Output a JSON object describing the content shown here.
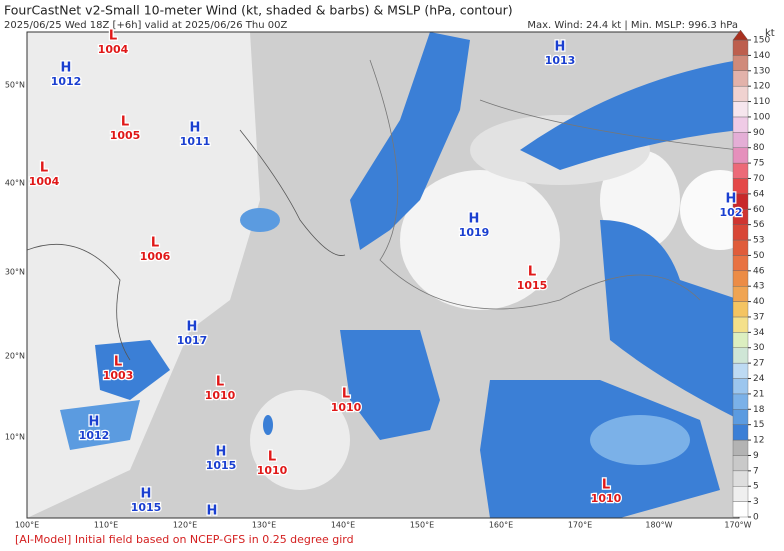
{
  "header": {
    "title": "FourCastNet v2-Small 10-meter Wind (kt, shaded & barbs) & MSLP (hPa, contour)",
    "subtitle": "2025/06/25 Wed 18Z [+6h] valid at 2025/06/26 Thu 00Z",
    "stats": "Max. Wind: 24.4 kt | Min. MSLP: 996.3 hPa"
  },
  "colorbar": {
    "unit": "kt",
    "levels": [
      0,
      3,
      5,
      7,
      9,
      12,
      15,
      18,
      21,
      24,
      27,
      30,
      34,
      37,
      40,
      43,
      46,
      50,
      53,
      56,
      60,
      64,
      70,
      75,
      80,
      90,
      100,
      110,
      120,
      130,
      140,
      150
    ],
    "colors": [
      "#ffffff",
      "#efefef",
      "#dedede",
      "#c9c9c9",
      "#b3b3b3",
      "#3b7fd6",
      "#5b9be0",
      "#7bb1e8",
      "#9cc6ee",
      "#bddaf3",
      "#cfe6d6",
      "#dcefc0",
      "#f4e08a",
      "#f4c462",
      "#f0a452",
      "#ec8c46",
      "#e87242",
      "#e05c3a",
      "#d84636",
      "#cf3430",
      "#c8282a",
      "#e44848",
      "#ec6a78",
      "#e590bc",
      "#e4aed6",
      "#efcbe6",
      "#f6e6ee",
      "#f0d2d0",
      "#e2b2aa",
      "#d08a7a",
      "#bd5f4e"
    ],
    "top_color": "#a8301f"
  },
  "centers": [
    {
      "symbol": "L",
      "pressure": 1004
    },
    {
      "symbol": "H",
      "pressure": 1012
    },
    {
      "symbol": "H",
      "pressure": 1011
    },
    {
      "symbol": "L",
      "pressure": 1005
    },
    {
      "symbol": "L",
      "pressure": 1004
    },
    {
      "symbol": "H",
      "pressure": 1013
    },
    {
      "symbol": "H",
      "pressure": 1019
    },
    {
      "symbol": "H",
      "pressure": 102
    },
    {
      "symbol": "L",
      "pressure": 1006
    },
    {
      "symbol": "L",
      "pressure": 1015
    },
    {
      "symbol": "H",
      "pressure": 1017
    },
    {
      "symbol": "L",
      "pressure": 1003
    },
    {
      "symbol": "L",
      "pressure": 1010
    },
    {
      "symbol": "L",
      "pressure": 1010
    },
    {
      "symbol": "H",
      "pressure": 1012
    },
    {
      "symbol": "H",
      "pressure": 1015
    },
    {
      "symbol": "L",
      "pressure": 1010
    },
    {
      "symbol": "L",
      "pressure": 1010
    },
    {
      "symbol": "H",
      "pressure": 1015
    },
    {
      "symbol": "H",
      "pressure": null
    }
  ],
  "lon_labels": [
    "100°E",
    "110°E",
    "120°E",
    "130°E",
    "140°E",
    "150°E",
    "160°E",
    "170°E",
    "180°W",
    "170°W"
  ],
  "lat_labels": [
    "50°N",
    "40°N",
    "30°N",
    "20°N",
    "10°N"
  ],
  "footer": "[AI-Model] Initial field based on NCEP-GFS in 0.25 degree gird"
}
